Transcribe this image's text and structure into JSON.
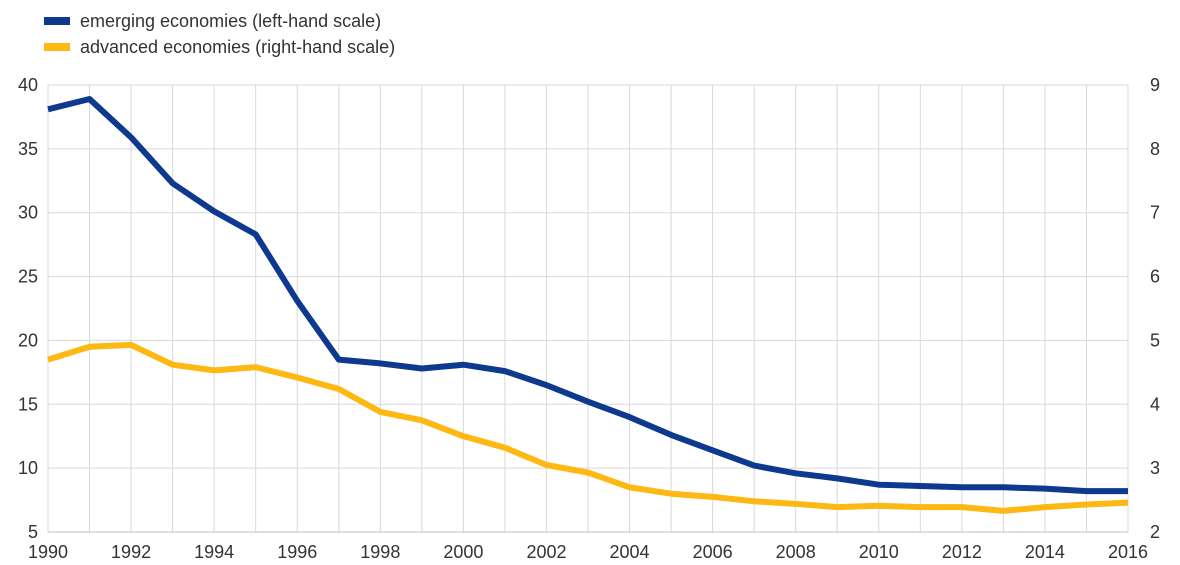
{
  "chart_data": {
    "type": "line",
    "title": "",
    "xlabel": "",
    "ylabel": "",
    "x": [
      1990,
      1991,
      1992,
      1993,
      1994,
      1995,
      1996,
      1997,
      1998,
      1999,
      2000,
      2001,
      2002,
      2003,
      2004,
      2005,
      2006,
      2007,
      2008,
      2009,
      2010,
      2011,
      2012,
      2013,
      2014,
      2015,
      2016
    ],
    "x_tick_labels": [
      "1990",
      "1992",
      "1994",
      "1996",
      "1998",
      "2000",
      "2002",
      "2004",
      "2006",
      "2008",
      "2010",
      "2012",
      "2014",
      "2016"
    ],
    "xlim": [
      1990,
      2016
    ],
    "left_axis": {
      "ylim": [
        5,
        40
      ],
      "tick_labels": [
        "5",
        "10",
        "15",
        "20",
        "25",
        "30",
        "35",
        "40"
      ]
    },
    "right_axis": {
      "ylim": [
        2,
        9
      ],
      "tick_labels": [
        "2",
        "3",
        "4",
        "5",
        "6",
        "7",
        "8",
        "9"
      ]
    },
    "grid": true,
    "legend_position": "top-left",
    "series": [
      {
        "name": "emerging economies (left-hand scale)",
        "axis": "left",
        "color": "#0d3a8f",
        "values": [
          38.1,
          38.9,
          35.9,
          32.3,
          30.1,
          28.3,
          23.1,
          18.5,
          18.2,
          17.8,
          18.1,
          17.6,
          16.5,
          15.2,
          14.0,
          12.6,
          11.4,
          10.2,
          9.6,
          9.2,
          8.7,
          8.6,
          8.5,
          8.5,
          8.4,
          8.2,
          8.2
        ]
      },
      {
        "name": "advanced economies (right-hand scale)",
        "axis": "right",
        "color": "#fdb813",
        "values": [
          4.7,
          4.9,
          4.93,
          4.62,
          4.53,
          4.58,
          4.42,
          4.24,
          3.88,
          3.75,
          3.5,
          3.32,
          3.05,
          2.93,
          2.7,
          2.6,
          2.55,
          2.48,
          2.44,
          2.39,
          2.41,
          2.39,
          2.39,
          2.33,
          2.39,
          2.43,
          2.46
        ]
      }
    ]
  }
}
